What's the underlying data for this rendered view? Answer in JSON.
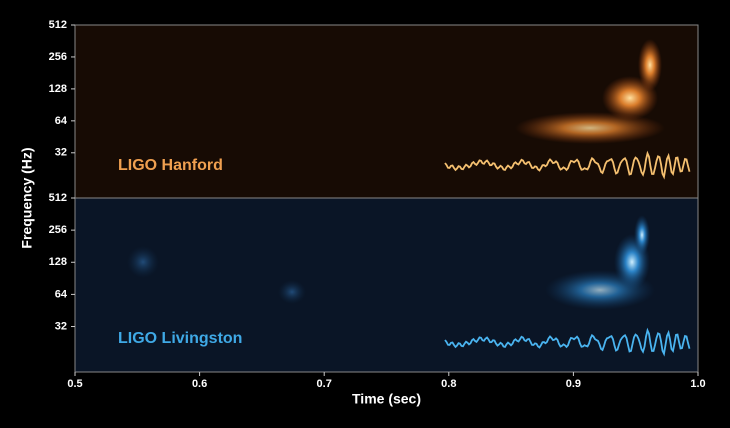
{
  "chart_data": [
    {
      "type": "spectrogram",
      "label": "LIGO Hanford",
      "color": "#f0a050",
      "ylabel": "Frequency (Hz)",
      "log_scale": true,
      "ylim": [
        12,
        512
      ],
      "yticks": [
        32,
        64,
        128,
        256,
        512
      ]
    },
    {
      "type": "spectrogram",
      "label": "LIGO Livingston",
      "color": "#3fa9e6",
      "xlabel": "Time (sec)",
      "log_scale": true,
      "ylim": [
        12,
        512
      ],
      "yticks": [
        32,
        64,
        128,
        256,
        512
      ],
      "xlim": [
        0.5,
        1
      ],
      "xticks": [
        0.5,
        0.6,
        0.7,
        0.8,
        0.9,
        {
          "value": 1,
          "label": "1.0"
        }
      ]
    }
  ]
}
